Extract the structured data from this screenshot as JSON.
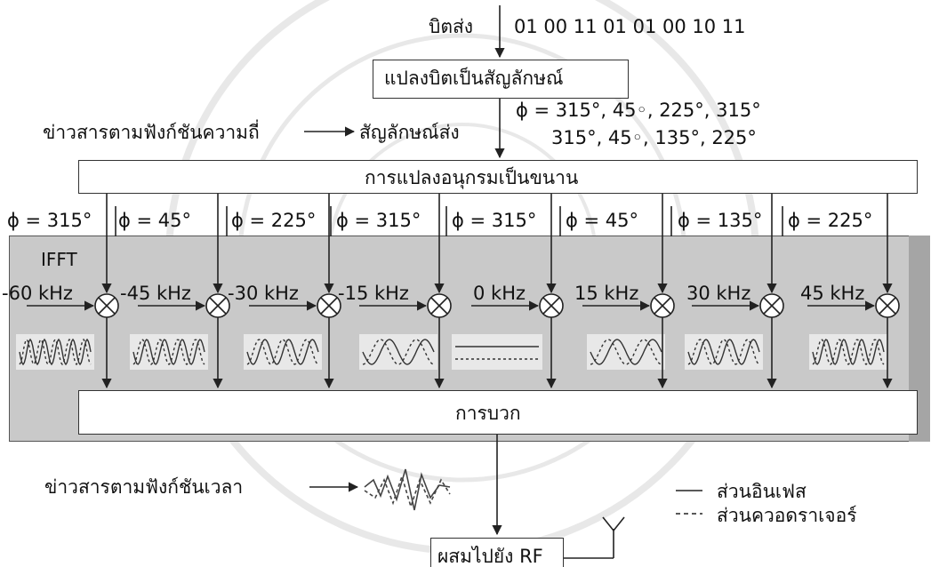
{
  "input_bits_label": "บิตส่ง",
  "input_bits": "01 00 11 01 01 00 10 11",
  "bit_to_symbol_block": "แปลงบิตเป็นสัญลักษณ์",
  "phase_line_1": "ϕ = 315°, 45◦, 225°, 315°",
  "phase_line_2": "315°, 45◦, 135°, 225°",
  "freq_domain_label": "ข่าวสารตามฟังก์ชันความถี่",
  "tx_symbols_label": "สัญลักษณ์ส่ง",
  "serial_to_parallel_block": "การแปลงอนุกรมเป็นขนาน",
  "subcarrier_phases": [
    "ϕ = 315°",
    "ϕ = 45°",
    "ϕ = 225°",
    "ϕ = 315°",
    "ϕ = 315°",
    "ϕ = 45°",
    "ϕ = 135°",
    "ϕ = 225°"
  ],
  "ifft_label": "IFFT",
  "subcarrier_freqs": [
    "-60 kHz",
    "-45 kHz",
    "-30 kHz",
    "-15 kHz",
    "0 kHz",
    "15 kHz",
    "30 kHz",
    "45 kHz"
  ],
  "sum_block": "การบวก",
  "time_domain_label": "ข่าวสารตามฟังก์ชันเวลา",
  "rf_block": "ผสมไปยัง RF",
  "legend": {
    "in_phase": "ส่วนอินเฟส",
    "quadrature": "ส่วนควอดราเจอร์"
  },
  "colors": {
    "ifft_background": "#c9c9c9",
    "line": "#333333"
  }
}
